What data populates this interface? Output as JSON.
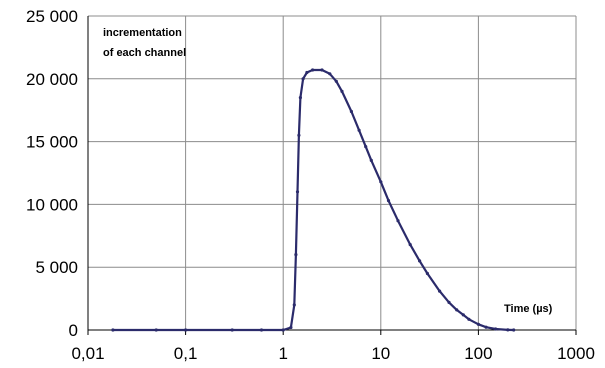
{
  "chart_data": {
    "type": "line",
    "x_scale": "log",
    "xlim": [
      0.01,
      1000
    ],
    "ylim": [
      0,
      25000
    ],
    "x_ticks": [
      {
        "value": 0.01,
        "label": "0,01"
      },
      {
        "value": 0.1,
        "label": "0,1"
      },
      {
        "value": 1,
        "label": "1"
      },
      {
        "value": 10,
        "label": "10"
      },
      {
        "value": 100,
        "label": "100"
      },
      {
        "value": 1000,
        "label": "1000"
      }
    ],
    "y_ticks": [
      {
        "value": 0,
        "label": "0"
      },
      {
        "value": 5000,
        "label": "5 000"
      },
      {
        "value": 10000,
        "label": "10 000"
      },
      {
        "value": 15000,
        "label": "15 000"
      },
      {
        "value": 20000,
        "label": "20 000"
      },
      {
        "value": 25000,
        "label": "25 000"
      }
    ],
    "grid": true,
    "annotations": {
      "top_left_line1": "incrementation",
      "top_left_line2": "of each channel",
      "x_axis_label": "Time (µs)"
    },
    "colors": {
      "series": "#2b2b6b",
      "grid": "#8c8c8c",
      "axis": "#000000"
    },
    "series": [
      {
        "x": [
          0.018,
          0.05,
          0.1,
          0.3,
          0.6,
          1.0,
          1.2,
          1.3,
          1.35,
          1.4,
          1.45,
          1.5,
          1.6,
          1.75,
          2.0,
          2.5,
          3.0,
          3.5,
          4.0,
          5.0,
          6.0,
          7.0,
          8.0,
          10,
          12,
          15,
          20,
          25,
          30,
          40,
          50,
          60,
          70,
          80,
          100,
          120,
          150,
          200,
          230
        ],
        "y": [
          0,
          0,
          0,
          0,
          0,
          0,
          200,
          2000,
          6000,
          11000,
          15500,
          18500,
          20000,
          20500,
          20700,
          20700,
          20400,
          19800,
          19000,
          17400,
          15900,
          14600,
          13500,
          11800,
          10300,
          8700,
          6800,
          5500,
          4500,
          3100,
          2200,
          1600,
          1200,
          850,
          450,
          220,
          80,
          10,
          0
        ]
      }
    ]
  }
}
